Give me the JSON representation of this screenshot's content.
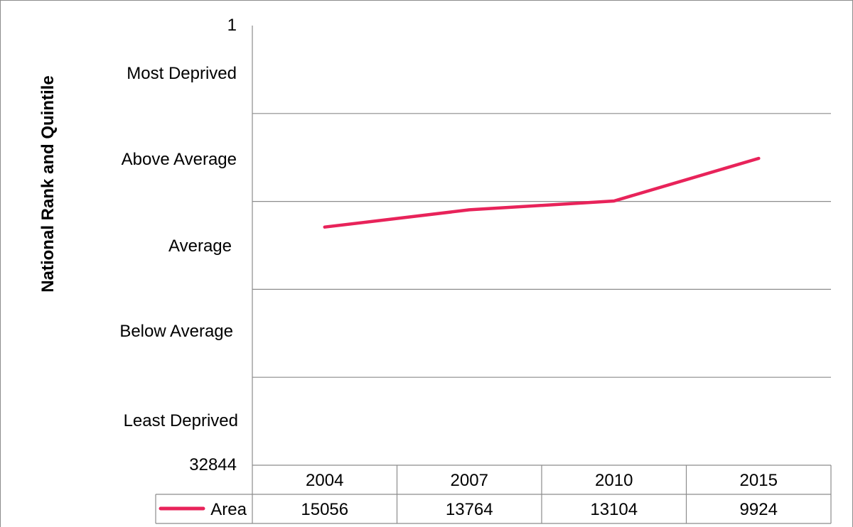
{
  "chart_data": {
    "type": "line",
    "ylabel": "National Rank and Quintile",
    "y_axis": {
      "top_label": "1",
      "bottom_label": "32844",
      "inverted": true,
      "min": 1,
      "max": 32844
    },
    "quintile_bands": [
      "Most Deprived",
      "Above Average",
      "Average",
      "Below Average",
      "Least Deprived"
    ],
    "categories": [
      "2004",
      "2007",
      "2010",
      "2015"
    ],
    "series": [
      {
        "name": "Area",
        "color": "#e8235a",
        "values": [
          15056,
          13764,
          13104,
          9924
        ]
      }
    ],
    "grid": true,
    "legend": "data-table"
  }
}
